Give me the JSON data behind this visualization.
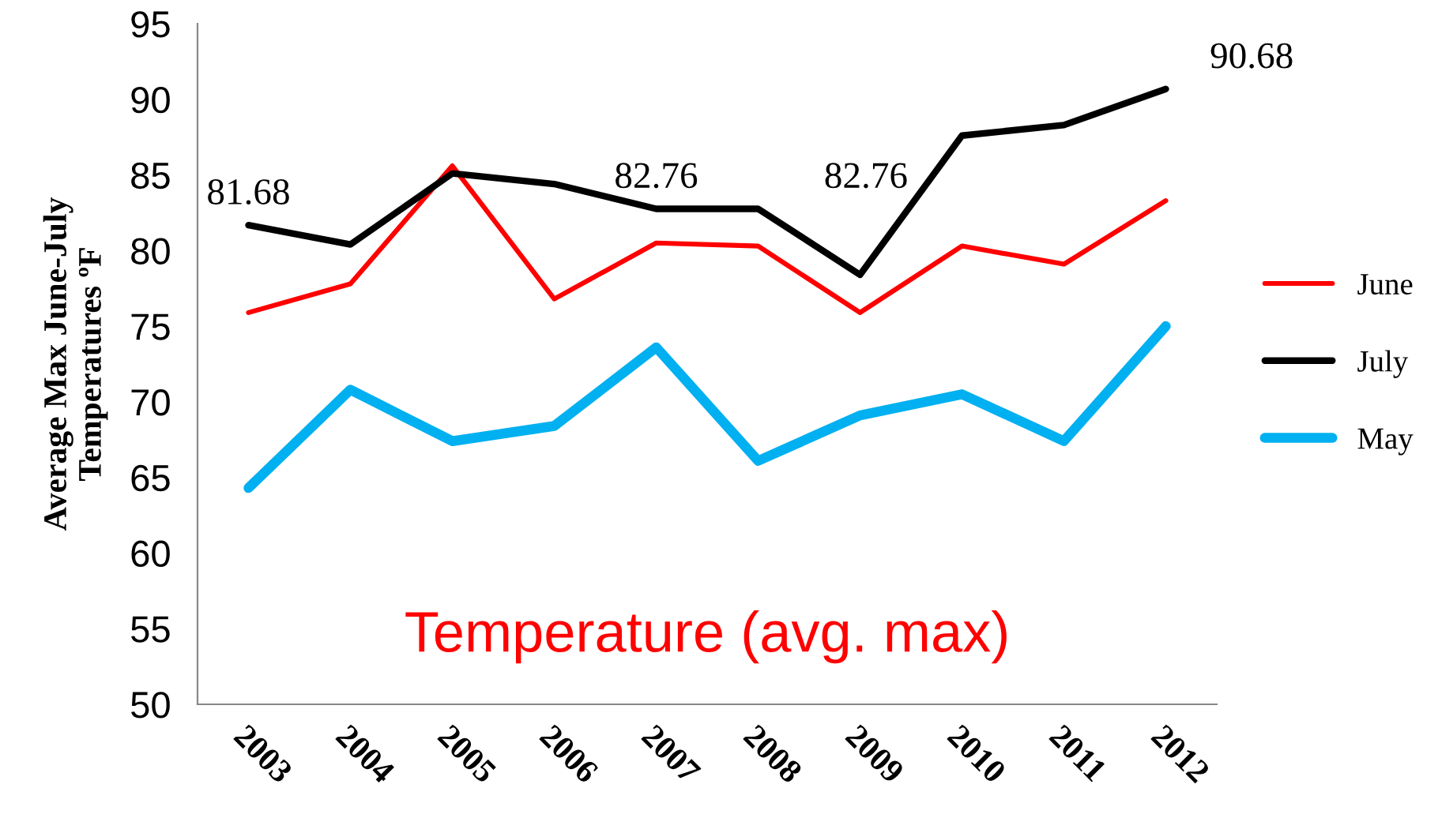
{
  "chart_data": {
    "type": "line",
    "ylabel": "Average Max June-July\nTemperatures ºF",
    "categories": [
      "2003",
      "2004",
      "2005",
      "2006",
      "2007",
      "2008",
      "2009",
      "2010",
      "2011",
      "2012"
    ],
    "series": [
      {
        "name": "June",
        "color": "#ff0000",
        "values": [
          75.9,
          77.8,
          85.6,
          76.8,
          80.5,
          80.3,
          75.9,
          80.3,
          79.1,
          83.3
        ]
      },
      {
        "name": "July",
        "color": "#000000",
        "values": [
          81.68,
          80.4,
          85.1,
          84.4,
          82.76,
          82.76,
          78.4,
          87.6,
          88.3,
          90.68
        ],
        "value_labels": [
          "81.68",
          null,
          null,
          null,
          "82.76",
          "82.76",
          null,
          null,
          null,
          "90.68"
        ]
      },
      {
        "name": "May",
        "color": "#00b0f0",
        "values": [
          64.3,
          70.8,
          67.4,
          68.4,
          73.6,
          66.1,
          69.1,
          70.5,
          67.4,
          75.0
        ]
      }
    ],
    "ylim": [
      50,
      95
    ],
    "yticks": [
      50,
      55,
      60,
      65,
      70,
      75,
      80,
      85,
      90,
      95
    ],
    "annotations": [
      "Temperature (avg. max)"
    ],
    "grid": false,
    "legend": "right",
    "marker": "none",
    "line_style": "solid"
  }
}
